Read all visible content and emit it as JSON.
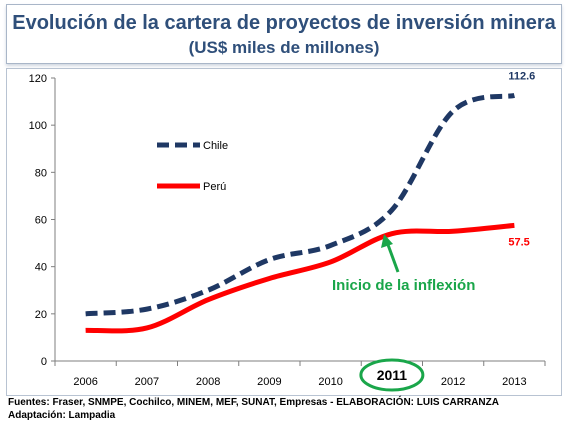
{
  "header": {
    "title": "Evolución de la cartera de proyectos de inversión minera",
    "subtitle": "(US$ miles de millones)"
  },
  "colors": {
    "title": "#2f4f7a",
    "chile": "#1f3864",
    "peru": "#ff0000",
    "annotation": "#1aa64a"
  },
  "chart_data": {
    "type": "line",
    "title": "",
    "xlabel": "",
    "ylabel": "",
    "categories": [
      "2006",
      "2007",
      "2008",
      "2009",
      "2010",
      "2011",
      "2012",
      "2013"
    ],
    "ylim": [
      0,
      120
    ],
    "yticks": [
      "0",
      "20",
      "40",
      "60",
      "80",
      "100",
      "120"
    ],
    "grid": false,
    "series": [
      {
        "name": "Chile",
        "style": "dashed",
        "values": [
          20,
          22,
          30,
          43,
          49,
          64,
          106,
          112.6
        ]
      },
      {
        "name": "Perú",
        "style": "solid",
        "values": [
          13,
          14,
          26,
          35,
          42,
          54,
          55,
          57.5
        ]
      }
    ],
    "end_labels": {
      "chile": "112.6",
      "peru": "57.5"
    },
    "annotation": {
      "text": "Inicio de la inflexión",
      "x": 2011
    },
    "highlight_tick": "2011",
    "legend_position": "left"
  },
  "footer": {
    "line1": "Fuentes: Fraser, SNMPE, Cochilco, MINEM, MEF, SUNAT, Empresas -  ELABORACIÓN: LUIS CARRANZA",
    "line2": "Adaptación: Lampadia"
  }
}
